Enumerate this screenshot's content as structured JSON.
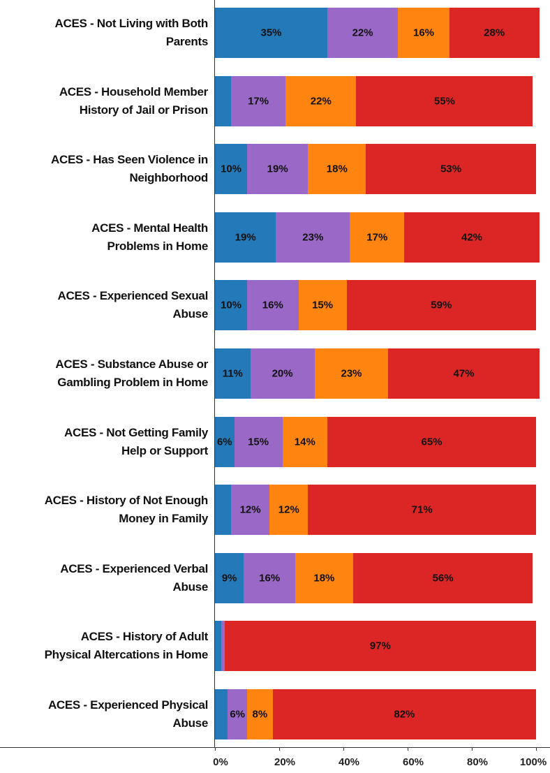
{
  "chart_data": {
    "type": "stacked-bar-horizontal",
    "categories": [
      "ACES - Not Living with Both\nParents",
      "ACES - Household Member\nHistory of Jail or Prison",
      "ACES - Has Seen Violence in\nNeighborhood",
      "ACES - Mental Health\nProblems in Home",
      "ACES - Experienced Sexual\nAbuse",
      "ACES - Substance Abuse or\nGambling Problem in Home",
      "ACES - Not Getting Family\nHelp or Support",
      "ACES - History of Not Enough\nMoney in Family",
      "ACES - Experienced Verbal\nAbuse",
      "ACES - History of Adult\nPhysical Altercations in Home",
      "ACES - Experienced Physical\nAbuse"
    ],
    "series": [
      {
        "color": "#2479b9",
        "values": [
          35,
          5,
          10,
          19,
          10,
          11,
          6,
          5,
          9,
          2,
          4
        ],
        "value_labels": [
          "35%",
          null,
          "10%",
          "19%",
          "10%",
          "11%",
          "6%",
          null,
          "9%",
          null,
          null
        ]
      },
      {
        "color": "#9a68c6",
        "values": [
          22,
          17,
          19,
          23,
          16,
          20,
          15,
          12,
          16,
          1,
          6
        ],
        "value_labels": [
          "22%",
          "17%",
          "19%",
          "23%",
          "16%",
          "20%",
          "15%",
          "12%",
          "16%",
          null,
          "6%"
        ]
      },
      {
        "color": "#ff8410",
        "values": [
          16,
          22,
          18,
          17,
          15,
          23,
          14,
          12,
          18,
          0,
          8
        ],
        "value_labels": [
          "16%",
          "22%",
          "18%",
          "17%",
          "15%",
          "23%",
          "14%",
          "12%",
          "18%",
          null,
          "8%"
        ]
      },
      {
        "color": "#dc2626",
        "values": [
          28,
          55,
          53,
          42,
          59,
          47,
          65,
          71,
          56,
          97,
          82
        ],
        "value_labels": [
          "28%",
          "55%",
          "53%",
          "42%",
          "59%",
          "47%",
          "65%",
          "71%",
          "56%",
          "97%",
          "82%"
        ]
      }
    ],
    "xlim": [
      0,
      100
    ],
    "xticks": [
      {
        "value": 0,
        "label": "0%"
      },
      {
        "value": 20,
        "label": "20%"
      },
      {
        "value": 40,
        "label": "40%"
      },
      {
        "value": 60,
        "label": "60%"
      },
      {
        "value": 80,
        "label": "80%"
      },
      {
        "value": 100,
        "label": "100%"
      }
    ]
  }
}
